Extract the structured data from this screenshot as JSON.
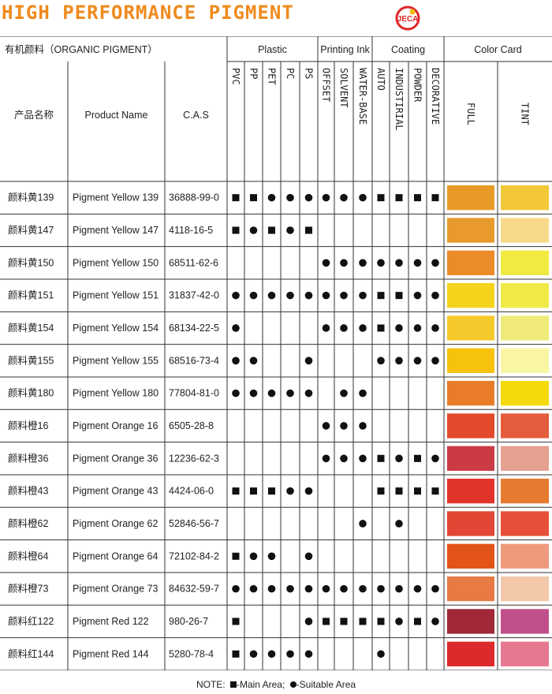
{
  "title": "HIGH PERFORMANCE PIGMENT",
  "logo": {
    "brand": "JECA",
    "tagline": "",
    "ring_color": "#e0262a",
    "accent_color": "#f2b705"
  },
  "header": {
    "organic": "有机颜料（ORGANIC PIGMENT）",
    "groups": [
      "Plastic",
      "Printing Ink",
      "Coating",
      "Color Card"
    ],
    "cn_name": "产品名称",
    "product_name": "Product Name",
    "cas": "C.A.S",
    "uses": [
      "PVC",
      "PP",
      "PET",
      "PC",
      "PS",
      "OFFSET",
      "SOLVENT",
      "WATER-BASE",
      "AUTO",
      "INDUSTIRIAL",
      "POWDER",
      "DECORATIVE"
    ],
    "card_cols": [
      "FULL",
      "TINT"
    ]
  },
  "rows": [
    {
      "cn": "颜料黄139",
      "name": "Pigment Yellow 139",
      "cas": "36888-99-0",
      "marks": [
        "sq",
        "sq",
        "dot",
        "dot",
        "dot",
        "dot",
        "dot",
        "dot",
        "sq",
        "sq",
        "sq",
        "sq"
      ],
      "full": "#e89a28",
      "tint": "#f3c838"
    },
    {
      "cn": "颜料黄147",
      "name": "Pigment Yellow 147",
      "cas": "4118-16-5",
      "marks": [
        "sq",
        "dot",
        "sq",
        "dot",
        "sq",
        "",
        "",
        "",
        "",
        "",
        "",
        ""
      ],
      "full": "#e89a2c",
      "tint": "#f8d88a"
    },
    {
      "cn": "颜料黄150",
      "name": "Pigment Yellow 150",
      "cas": "68511-62-6",
      "marks": [
        "",
        "",
        "",
        "",
        "",
        "dot",
        "dot",
        "dot",
        "dot",
        "dot",
        "dot",
        "dot"
      ],
      "full": "#eb8c28",
      "tint": "#f2ea40"
    },
    {
      "cn": "颜料黄151",
      "name": "Pigment Yellow 151",
      "cas": "31837-42-0",
      "marks": [
        "dot",
        "dot",
        "dot",
        "dot",
        "dot",
        "dot",
        "dot",
        "dot",
        "sq",
        "sq",
        "dot",
        "dot"
      ],
      "full": "#f5d21c",
      "tint": "#f0ea48"
    },
    {
      "cn": "颜料黄154",
      "name": "Pigment Yellow 154",
      "cas": "68134-22-5",
      "marks": [
        "dot",
        "",
        "",
        "",
        "",
        "dot",
        "dot",
        "dot",
        "sq",
        "dot",
        "dot",
        "dot"
      ],
      "full": "#f5c82c",
      "tint": "#f0ea78"
    },
    {
      "cn": "颜料黄155",
      "name": "Pigment Yellow 155",
      "cas": "68516-73-4",
      "marks": [
        "dot",
        "dot",
        "",
        "",
        "dot",
        "",
        "",
        "",
        "dot",
        "dot",
        "dot",
        "dot"
      ],
      "full": "#f6c20e",
      "tint": "#f8f6a2"
    },
    {
      "cn": "颜料黄180",
      "name": "Pigment Yellow 180",
      "cas": "77804-81-0",
      "marks": [
        "dot",
        "dot",
        "dot",
        "dot",
        "dot",
        "",
        "dot",
        "dot",
        "",
        "",
        "",
        ""
      ],
      "full": "#e87c28",
      "tint": "#f5da0a"
    },
    {
      "cn": "颜料橙16",
      "name": "Pigment Orange 16",
      "cas": "6505-28-8",
      "marks": [
        "",
        "",
        "",
        "",
        "",
        "dot",
        "dot",
        "dot",
        "",
        "",
        "",
        ""
      ],
      "full": "#e34a2c",
      "tint": "#e45c3c"
    },
    {
      "cn": "颜料橙36",
      "name": "Pigment Orange 36",
      "cas": "12236-62-3",
      "marks": [
        "",
        "",
        "",
        "",
        "",
        "dot",
        "dot",
        "dot",
        "sq",
        "dot",
        "sq",
        "dot"
      ],
      "full": "#cc3a44",
      "tint": "#e6a090"
    },
    {
      "cn": "颜料橙43",
      "name": "Pigment Orange 43",
      "cas": "4424-06-0",
      "marks": [
        "sq",
        "sq",
        "sq",
        "dot",
        "dot",
        "",
        "",
        "",
        "sq",
        "sq",
        "sq",
        "sq"
      ],
      "full": "#e2342a",
      "tint": "#e57a30"
    },
    {
      "cn": "颜料橙62",
      "name": "Pigment Orange 62",
      "cas": "52846-56-7",
      "marks": [
        "",
        "",
        "",
        "",
        "",
        "",
        "",
        "dot",
        "",
        "dot",
        "",
        ""
      ],
      "full": "#e24634",
      "tint": "#e65038"
    },
    {
      "cn": "颜料橙64",
      "name": "Pigment Orange 64",
      "cas": "72102-84-2",
      "marks": [
        "sq",
        "dot",
        "dot",
        "",
        "dot",
        "",
        "",
        "",
        "",
        "",
        "",
        ""
      ],
      "full": "#e25418",
      "tint": "#ee9a7c"
    },
    {
      "cn": "颜料橙73",
      "name": "Pigment Orange 73",
      "cas": "84632-59-7",
      "marks": [
        "dot",
        "dot",
        "dot",
        "dot",
        "dot",
        "dot",
        "dot",
        "dot",
        "dot",
        "dot",
        "dot",
        "dot"
      ],
      "full": "#e87a44",
      "tint": "#f2c8a8"
    },
    {
      "cn": "颜料红122",
      "name": "Pigment Red 122",
      "cas": "980-26-7",
      "marks": [
        "sq",
        "",
        "",
        "",
        "dot",
        "sq",
        "sq",
        "sq",
        "sq",
        "dot",
        "sq",
        "dot"
      ],
      "full": "#a02838",
      "tint": "#c0508c"
    },
    {
      "cn": "颜料红144",
      "name": "Pigment Red 144",
      "cas": "5280-78-4",
      "marks": [
        "sq",
        "dot",
        "dot",
        "dot",
        "dot",
        "",
        "",
        "",
        "dot",
        "",
        "",
        ""
      ],
      "full": "#dc2a2c",
      "tint": "#e87890"
    }
  ],
  "note": {
    "prefix": "NOTE:",
    "main": "-Main Area;",
    "suitable": "-Suitable Area"
  }
}
